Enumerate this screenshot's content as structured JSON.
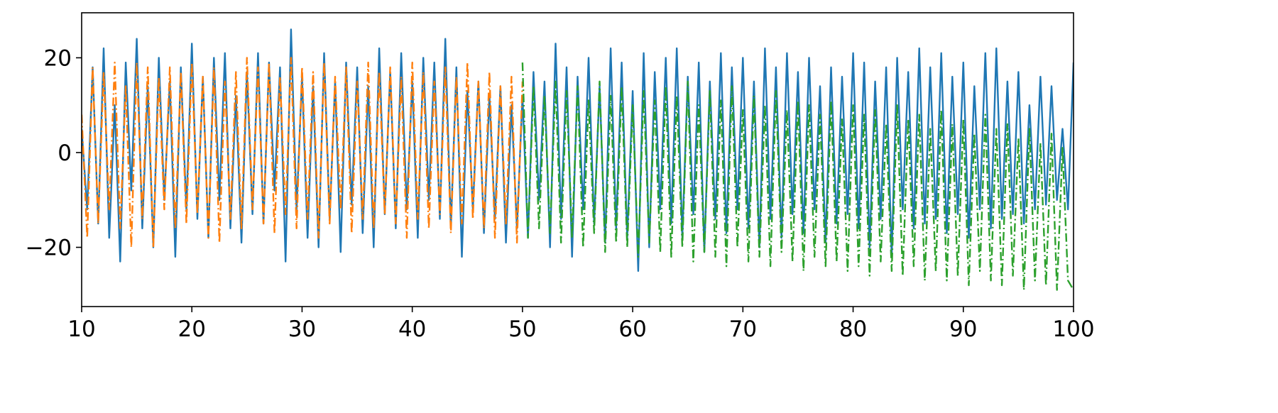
{
  "chart_data": {
    "type": "line",
    "title": "",
    "xlabel": "",
    "ylabel": "",
    "xlim": [
      10,
      100
    ],
    "ylim": [
      -32.5,
      29.5
    ],
    "grid": false,
    "xticks": [
      10,
      20,
      30,
      40,
      50,
      60,
      70,
      80,
      90,
      100
    ],
    "xtick_labels": [
      "10",
      "20",
      "30",
      "40",
      "50",
      "60",
      "70",
      "80",
      "90",
      "100"
    ],
    "yticks": [
      -20,
      0,
      20
    ],
    "ytick_labels": [
      "−20",
      "0",
      "20"
    ],
    "series": [
      {
        "color": "#1f77b4",
        "linestyle": "solid",
        "y": [
          5,
          -12,
          18,
          -15,
          22,
          -18,
          10,
          -23,
          19,
          -8,
          24,
          -16,
          14,
          -20,
          20,
          -10,
          15,
          -22,
          18,
          -12,
          23,
          -14,
          16,
          -18,
          20,
          -10,
          21,
          -16,
          12,
          -19,
          17,
          -13,
          21,
          -15,
          19,
          -8,
          18,
          -23,
          26,
          -12,
          16,
          -18,
          14,
          -20,
          21,
          -14,
          15,
          -21,
          19,
          -11,
          18,
          -17,
          14,
          -20,
          22,
          -13,
          17,
          -16,
          21,
          -12,
          15,
          -18,
          20,
          -10,
          19,
          -14,
          24,
          -16,
          18,
          -22,
          13,
          -12,
          15,
          -17,
          12,
          -14,
          14,
          -19,
          10,
          -16,
          12,
          -18,
          17,
          -10,
          15,
          -20,
          23,
          -14,
          18,
          -22,
          16,
          -12,
          20,
          -15,
          14,
          -19,
          22,
          -16,
          19,
          -18,
          13,
          -25,
          21,
          -20,
          17,
          -12,
          20,
          -15,
          22,
          -18,
          16,
          -13,
          19,
          -21,
          15,
          -14,
          21,
          -17,
          18,
          -12,
          20,
          -16,
          15,
          -20,
          22,
          -14,
          18,
          -18,
          21,
          -13,
          17,
          -17,
          20,
          -12,
          14,
          -19,
          18,
          -15,
          16,
          -13,
          21,
          -16,
          19,
          -20,
          15,
          -14,
          18,
          -22,
          20,
          -12,
          17,
          -16,
          22,
          -15,
          18,
          -14,
          21,
          -17,
          16,
          -13,
          19,
          -18,
          14,
          -12,
          21,
          -16,
          22,
          -14,
          15,
          -13,
          17,
          -15,
          10,
          -12,
          16,
          -11,
          14,
          -10,
          5,
          -12,
          19
        ],
        "x_range": [
          10,
          100
        ]
      },
      {
        "color": "#ff7f0e",
        "linestyle": "dashdot",
        "y": [
          8,
          -18,
          18,
          -15,
          17,
          -12,
          19,
          -16,
          14,
          -20,
          19,
          -14,
          18,
          -20,
          16,
          -12,
          18,
          -16,
          17,
          -15,
          19,
          -13,
          16,
          -18,
          18,
          -19,
          15,
          -14,
          17,
          -16,
          20,
          -12,
          18,
          -15,
          19,
          -17,
          16,
          -13,
          20,
          -16,
          18,
          -14,
          17,
          -18,
          19,
          -15,
          16,
          -12,
          18,
          -17,
          15,
          -14,
          19,
          -16,
          17,
          -13,
          18,
          -15,
          16,
          -18,
          19,
          -14,
          17,
          -16,
          15,
          -13,
          18,
          -17,
          16,
          -15,
          19,
          -14,
          15,
          -16,
          17,
          -18,
          14,
          -15,
          16,
          -19,
          15
        ],
        "x_range": [
          10,
          50
        ]
      },
      {
        "color": "#2ca02c",
        "linestyle": "dashdot",
        "y": [
          19,
          -18,
          14,
          -16,
          12,
          -17,
          15,
          -19,
          13,
          -18,
          14,
          -20,
          11,
          -17,
          15,
          -21,
          12,
          -19,
          14,
          -20,
          10,
          -22,
          13,
          -19,
          11,
          -21,
          14,
          -22,
          12,
          -20,
          15,
          -23,
          10,
          -21,
          13,
          -22,
          11,
          -24,
          14,
          -20,
          9,
          -23,
          12,
          -22,
          10,
          -24,
          13,
          -21,
          9,
          -23,
          11,
          -25,
          10,
          -22,
          8,
          -24,
          11,
          -23,
          7,
          -25,
          10,
          -24,
          8,
          -26,
          9,
          -23,
          6,
          -25,
          10,
          -26,
          7,
          -24,
          8,
          -27,
          5,
          -25,
          9,
          -27,
          6,
          -26,
          7,
          -28,
          4,
          -25,
          8,
          -27,
          5,
          -28,
          6,
          -26,
          3,
          -29,
          5,
          -27,
          2,
          -28,
          4,
          -29,
          1,
          -27,
          -29
        ],
        "x_range": [
          50,
          100
        ]
      }
    ]
  }
}
